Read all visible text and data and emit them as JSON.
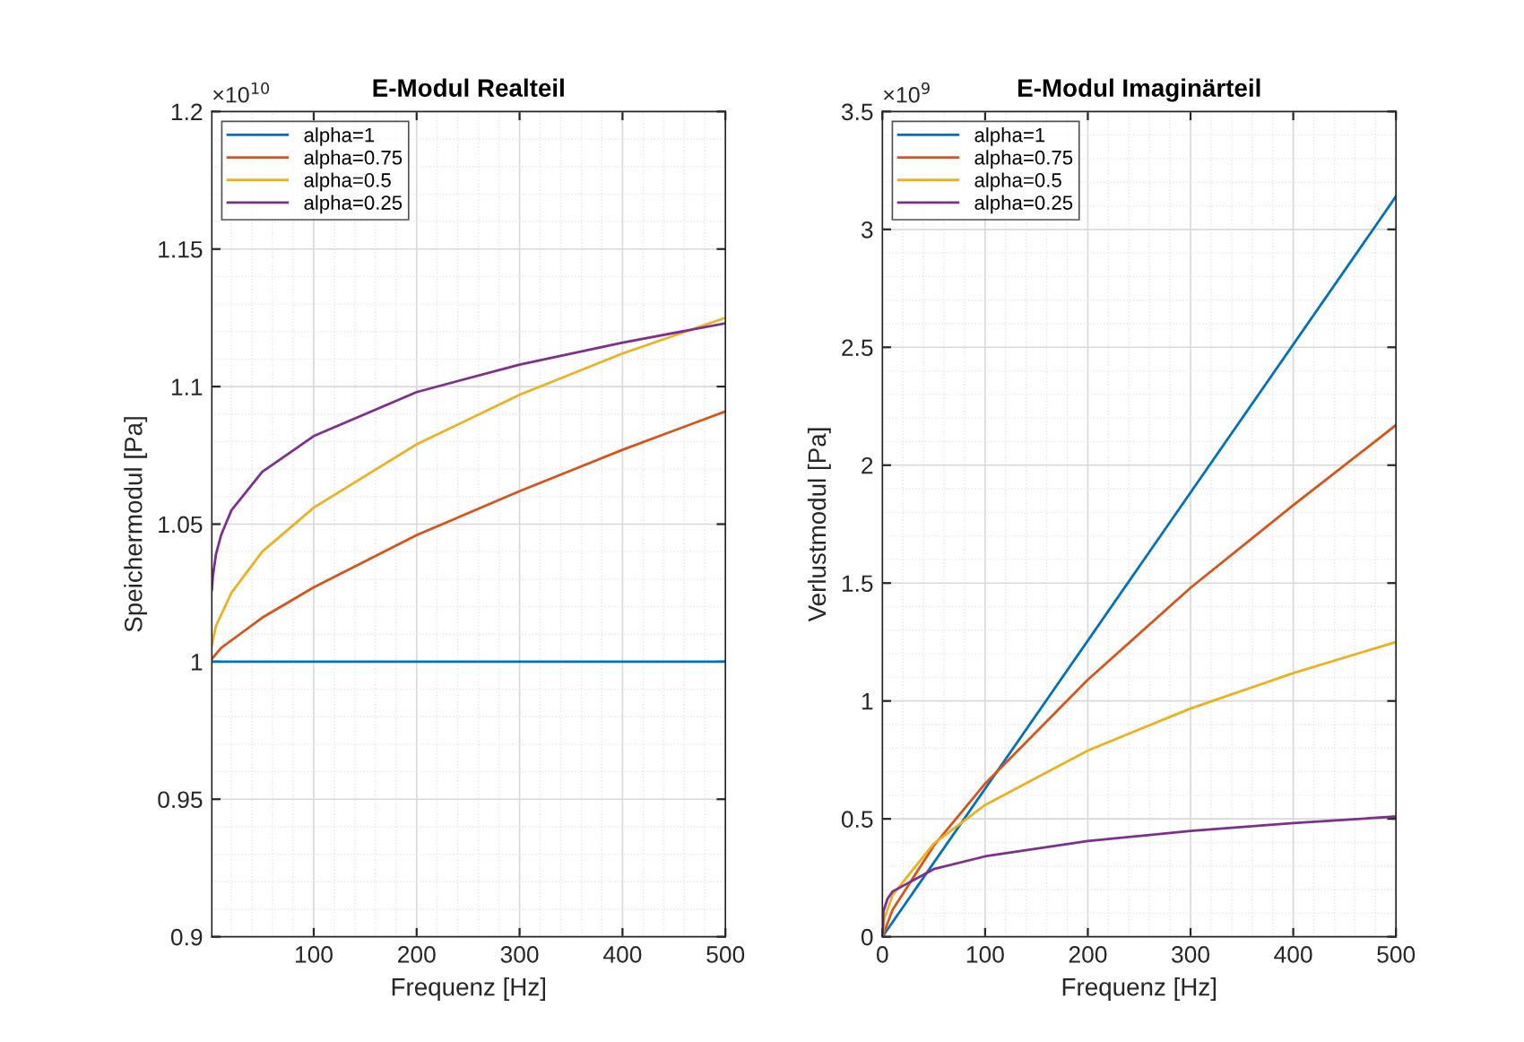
{
  "chart_data": [
    {
      "type": "line",
      "title": "E-Modul Realteil",
      "xlabel": "Frequenz [Hz]",
      "ylabel": "Speichermodul [Pa]",
      "annotations": [
        "×10$^{10}$"
      ],
      "xlim": [
        1,
        500
      ],
      "xticks": [
        100,
        200,
        300,
        400,
        500
      ],
      "ylim": [
        0.9,
        1.2
      ],
      "yticks": [
        0.9,
        0.95,
        1,
        1.05,
        1.1,
        1.15,
        1.2
      ],
      "grid": true,
      "legend": "top left",
      "series": [
        {
          "name": "alpha=1",
          "color": "#0072bd",
          "x": [
            1,
            500
          ],
          "values": [
            1.0,
            1.0
          ]
        },
        {
          "name": "alpha=0.75",
          "color": "#d95319",
          "x": [
            1,
            10,
            50,
            100,
            200,
            300,
            400,
            500
          ],
          "values": [
            1.001,
            1.005,
            1.016,
            1.027,
            1.046,
            1.062,
            1.077,
            1.091
          ]
        },
        {
          "name": "alpha=0.5",
          "color": "#edb120",
          "x": [
            1,
            5,
            20,
            50,
            100,
            200,
            300,
            400,
            500
          ],
          "values": [
            1.006,
            1.013,
            1.025,
            1.04,
            1.056,
            1.079,
            1.097,
            1.112,
            1.125
          ]
        },
        {
          "name": "alpha=0.25",
          "color": "#7e2f8e",
          "x": [
            1,
            2,
            5,
            10,
            20,
            50,
            100,
            200,
            300,
            400,
            500
          ],
          "values": [
            1.026,
            1.031,
            1.039,
            1.046,
            1.055,
            1.069,
            1.082,
            1.098,
            1.108,
            1.116,
            1.123
          ]
        }
      ]
    },
    {
      "type": "line",
      "title": "E-Modul Imaginärteil",
      "xlabel": "Frequenz [Hz]",
      "ylabel": "Verlustmodul [Pa]",
      "annotations": [
        "×10$^{9}$"
      ],
      "xlim": [
        0,
        500
      ],
      "xticks": [
        0,
        100,
        200,
        300,
        400,
        500
      ],
      "ylim": [
        0,
        3.5
      ],
      "yticks": [
        0,
        0.5,
        1,
        1.5,
        2,
        2.5,
        3,
        3.5
      ],
      "grid": true,
      "legend": "top left",
      "series": [
        {
          "name": "alpha=1",
          "color": "#0072bd",
          "x": [
            0,
            500
          ],
          "values": [
            0,
            3.14
          ]
        },
        {
          "name": "alpha=0.75",
          "color": "#d95319",
          "x": [
            0,
            10,
            50,
            100,
            200,
            300,
            400,
            500
          ],
          "values": [
            0,
            0.115,
            0.386,
            0.649,
            1.09,
            1.48,
            1.83,
            2.17
          ]
        },
        {
          "name": "alpha=0.5",
          "color": "#edb120",
          "x": [
            0,
            2,
            10,
            50,
            100,
            200,
            300,
            400,
            500
          ],
          "values": [
            0,
            0.079,
            0.177,
            0.395,
            0.559,
            0.79,
            0.968,
            1.118,
            1.25
          ]
        },
        {
          "name": "alpha=0.25",
          "color": "#7e2f8e",
          "x": [
            0,
            1,
            5,
            10,
            50,
            100,
            200,
            300,
            400,
            500
          ],
          "values": [
            0,
            0.108,
            0.161,
            0.192,
            0.287,
            0.341,
            0.406,
            0.449,
            0.482,
            0.51
          ]
        }
      ]
    }
  ]
}
